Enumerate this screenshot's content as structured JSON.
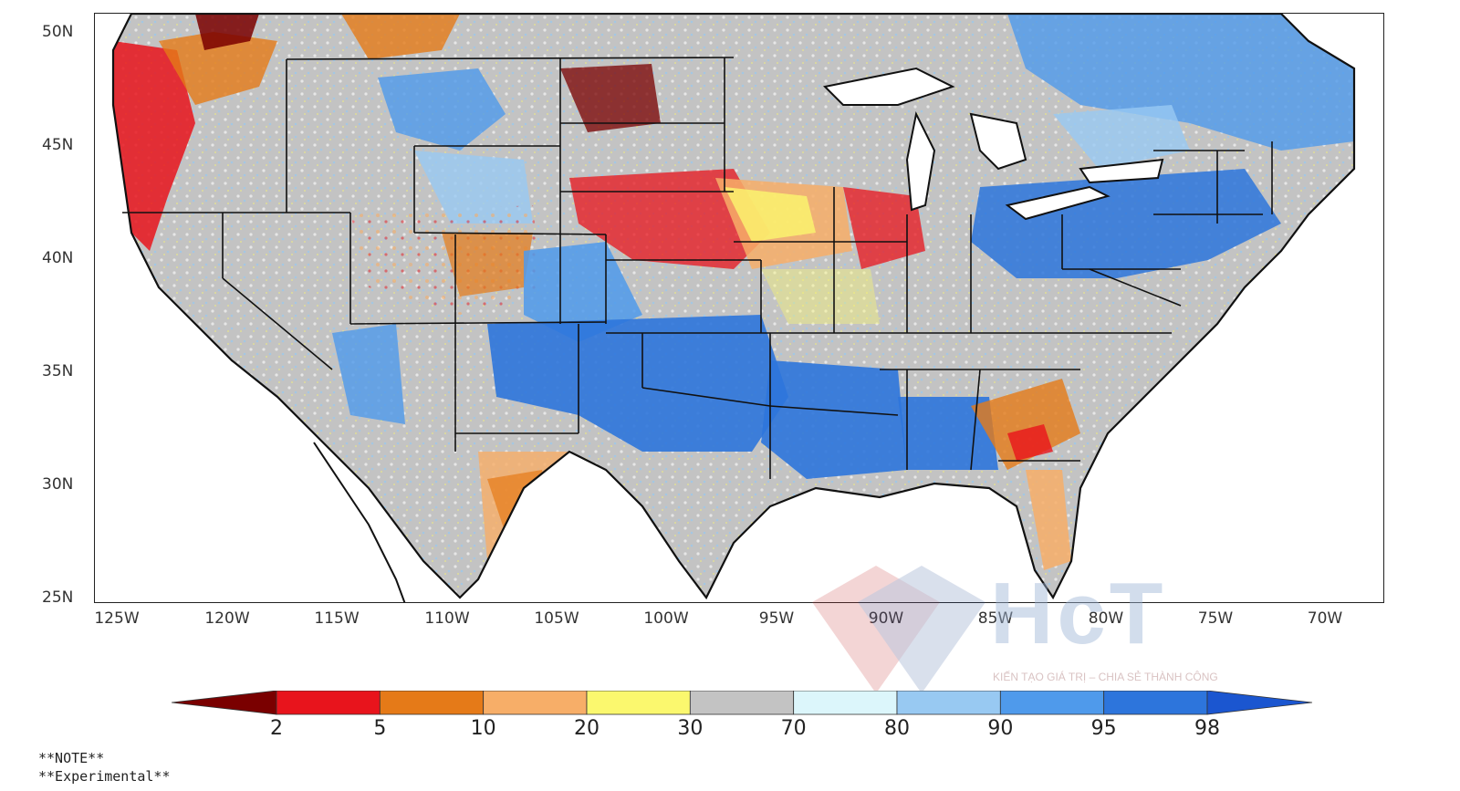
{
  "map": {
    "lat_labels": [
      "50N",
      "45N",
      "40N",
      "35N",
      "30N",
      "25N"
    ],
    "lon_labels": [
      "125W",
      "120W",
      "115W",
      "110W",
      "105W",
      "100W",
      "95W",
      "90W",
      "85W",
      "80W",
      "75W",
      "70W"
    ]
  },
  "colorbar": {
    "labels": [
      "2",
      "5",
      "10",
      "20",
      "30",
      "70",
      "80",
      "90",
      "95",
      "98"
    ],
    "colors": [
      "#7a0000",
      "#e8141c",
      "#e57a18",
      "#f7ae68",
      "#fbf86e",
      "#c3c3c3",
      "#dcf6fb",
      "#98c9f2",
      "#4f9aeb",
      "#2d75dc",
      "#1b56d0"
    ]
  },
  "notes": {
    "line1": "**NOTE**",
    "line2": "**Experimental**"
  },
  "watermark": {
    "text": "HcT",
    "tagline": "KIẾN TẠO GIÁ TRỊ – CHIA SẺ THÀNH CÔNG"
  },
  "regions": [
    {
      "name": "pacific-northwest",
      "category": "2-5",
      "color": "#e8141c"
    },
    {
      "name": "western-gray",
      "category": "30-70",
      "color": "#c3c3c3"
    },
    {
      "name": "southwest-blue",
      "category": "90-95",
      "color": "#4f9aeb"
    },
    {
      "name": "southern-plains-blue",
      "category": "95-98",
      "color": "#2d75dc"
    },
    {
      "name": "central-plains-dry",
      "category": "2-5",
      "color": "#e8141c"
    },
    {
      "name": "northeast-blue",
      "category": "95-98",
      "color": "#2d75dc"
    },
    {
      "name": "southeast-dry",
      "category": "5-10",
      "color": "#e57a18"
    }
  ]
}
